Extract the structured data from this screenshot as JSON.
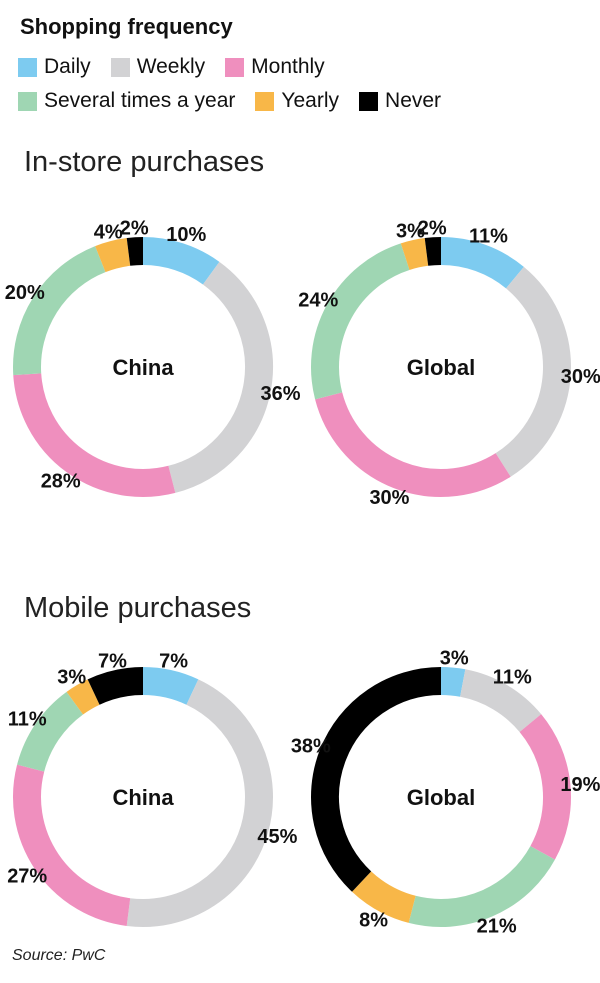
{
  "legend": {
    "title": "Shopping frequency",
    "items": [
      {
        "label": "Daily",
        "color": "#7dcbf0"
      },
      {
        "label": "Weekly",
        "color": "#d2d2d4"
      },
      {
        "label": "Monthly",
        "color": "#ef8fbe"
      },
      {
        "label": "Several times a year",
        "color": "#9fd6b3"
      },
      {
        "label": "Yearly",
        "color": "#f8b748"
      },
      {
        "label": "Never",
        "color": "#000000"
      }
    ]
  },
  "sections": {
    "instore_title": "In-store purchases",
    "mobile_title": "Mobile purchases"
  },
  "source": "Source: PwC",
  "chart_data": [
    {
      "type": "pie",
      "title": "In-store purchases",
      "center_label": "China",
      "categories": [
        "Daily",
        "Weekly",
        "Monthly",
        "Several times a year",
        "Yearly",
        "Never"
      ],
      "values": [
        10,
        36,
        28,
        20,
        4,
        2
      ],
      "labels": [
        "10%",
        "36%",
        "28%",
        "20%",
        "4%",
        "2%"
      ]
    },
    {
      "type": "pie",
      "title": "In-store purchases",
      "center_label": "Global",
      "categories": [
        "Daily",
        "Weekly",
        "Monthly",
        "Several times a year",
        "Yearly",
        "Never"
      ],
      "values": [
        11,
        30,
        30,
        24,
        3,
        2
      ],
      "labels": [
        "11%",
        "30%",
        "30%",
        "24%",
        "3%",
        "2%"
      ]
    },
    {
      "type": "pie",
      "title": "Mobile purchases",
      "center_label": "China",
      "categories": [
        "Daily",
        "Weekly",
        "Monthly",
        "Several times a year",
        "Yearly",
        "Never"
      ],
      "values": [
        7,
        45,
        27,
        11,
        3,
        7
      ],
      "labels": [
        "7%",
        "45%",
        "27%",
        "11%",
        "3%",
        "7%"
      ]
    },
    {
      "type": "pie",
      "title": "Mobile purchases",
      "center_label": "Global",
      "categories": [
        "Daily",
        "Weekly",
        "Monthly",
        "Several times a year",
        "Yearly",
        "Never"
      ],
      "values": [
        3,
        11,
        19,
        21,
        8,
        38
      ],
      "labels": [
        "3%",
        "11%",
        "19%",
        "21%",
        "8%",
        "38%"
      ]
    }
  ]
}
